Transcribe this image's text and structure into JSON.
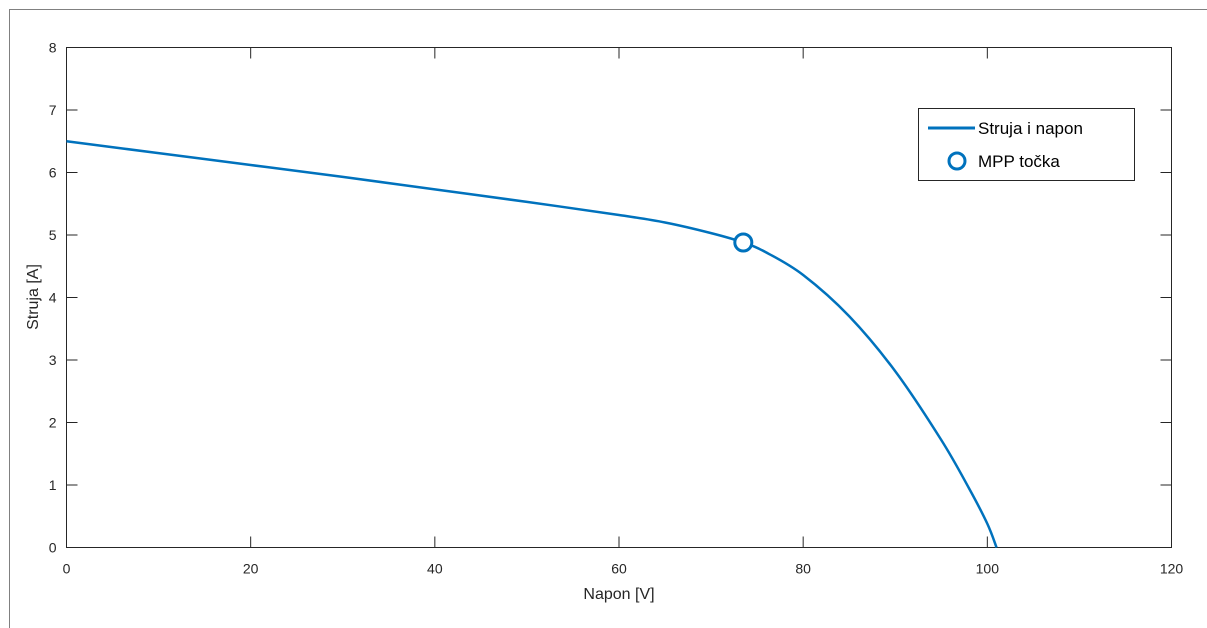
{
  "chart_data": {
    "type": "line",
    "xlabel": "Napon [V]",
    "ylabel": "Struja [A]",
    "xlim": [
      0,
      120
    ],
    "ylim": [
      0,
      8
    ],
    "xticks": [
      "0",
      "20",
      "40",
      "60",
      "80",
      "100",
      "120"
    ],
    "yticks": [
      "0",
      "1",
      "2",
      "3",
      "4",
      "5",
      "6",
      "7",
      "8"
    ],
    "grid": false,
    "legend_position": "top-right",
    "series": [
      {
        "name": "Struja i napon",
        "style": "line",
        "color": "#0072BD",
        "x": [
          0,
          10,
          20,
          30,
          40,
          50,
          60,
          65,
          70,
          73.5,
          76,
          80,
          85,
          90,
          95,
          98,
          100,
          101
        ],
        "y": [
          6.5,
          6.31,
          6.12,
          5.93,
          5.73,
          5.53,
          5.32,
          5.2,
          5.03,
          4.88,
          4.72,
          4.36,
          3.7,
          2.82,
          1.72,
          0.95,
          0.38,
          0.0
        ]
      },
      {
        "name": "MPP točka",
        "style": "marker",
        "marker": "circle",
        "color": "#0072BD",
        "x": [
          73.5
        ],
        "y": [
          4.88
        ]
      }
    ]
  }
}
